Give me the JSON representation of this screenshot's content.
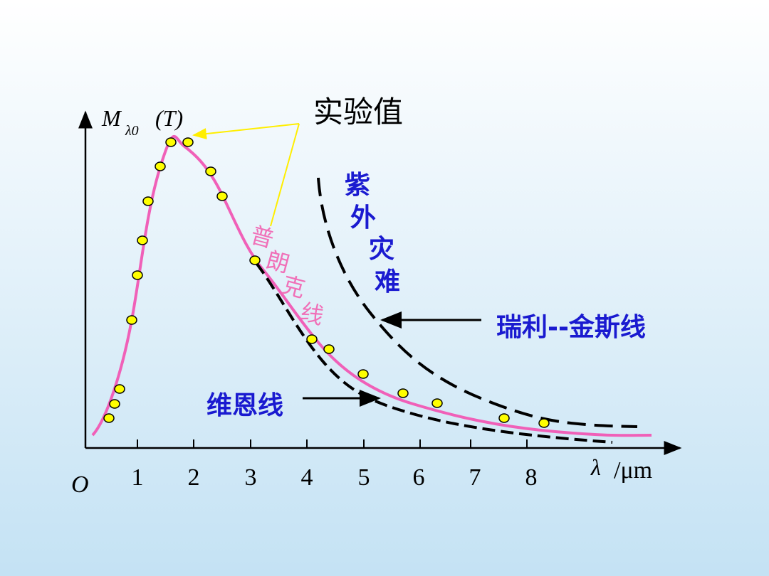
{
  "axis": {
    "y_label_main": "M",
    "y_label_sub": "λ0",
    "y_label_arg": "(T)",
    "origin": "O",
    "x_label_symbol": "λ",
    "x_label_unit": "/μm",
    "x_tick_labels": [
      "1",
      "2",
      "3",
      "4",
      "5",
      "6",
      "7",
      "8"
    ]
  },
  "labels": {
    "experimental": "实验值",
    "rayleigh_jeans": "瑞利--金斯线",
    "wien": "维恩线",
    "uv_catastrophe": [
      "紫",
      "外",
      "灾",
      "难"
    ],
    "planck": [
      "普",
      "朗",
      "克",
      "线"
    ]
  }
}
